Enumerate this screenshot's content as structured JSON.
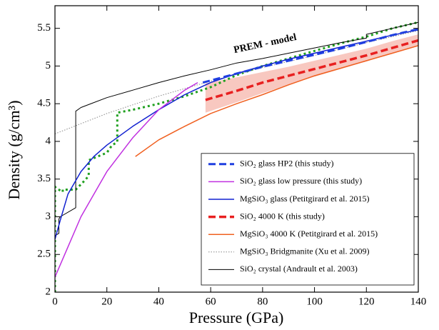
{
  "chart_data": {
    "type": "line",
    "x_label": "Pressure (GPa)",
    "y_label": "Density (g/cm³)",
    "xlim": [
      0,
      140
    ],
    "ylim": [
      2,
      5.8
    ],
    "xticks": [
      0,
      20,
      40,
      60,
      80,
      100,
      120,
      140
    ],
    "yticks": [
      2,
      2.5,
      3,
      3.5,
      4,
      4.5,
      5,
      5.5
    ],
    "legend": "lower right",
    "series": [
      {
        "name": "SiO₂ glass HP2 (this study)",
        "color": "#1f3fe0",
        "style": "dashed",
        "width": 3,
        "x": [
          57,
          70,
          80,
          90,
          100,
          110,
          120,
          130,
          140
        ],
        "values": [
          4.78,
          4.9,
          4.99,
          5.07,
          5.15,
          5.23,
          5.32,
          5.41,
          5.49
        ]
      },
      {
        "name": "SiO₂ glass low pressure (this study)",
        "color": "#c030e0",
        "style": "solid",
        "width": 1.5,
        "x": [
          0,
          5,
          10,
          20,
          30,
          40,
          50,
          55
        ],
        "values": [
          2.2,
          2.6,
          3.0,
          3.6,
          4.05,
          4.42,
          4.68,
          4.78
        ]
      },
      {
        "name": "MgSiO₃ glass (Petitgirard et al. 2015)",
        "color": "#1020d0",
        "style": "solid",
        "width": 1.5,
        "x": [
          0,
          2,
          5,
          10,
          15,
          20,
          30,
          40,
          50,
          60,
          70,
          80,
          90,
          100,
          110,
          120,
          130,
          140
        ],
        "values": [
          2.7,
          2.95,
          3.3,
          3.6,
          3.8,
          3.95,
          4.2,
          4.42,
          4.62,
          4.78,
          4.9,
          5.0,
          5.09,
          5.17,
          5.25,
          5.33,
          5.41,
          5.48
        ]
      },
      {
        "name": "SiO₂ 4000 K (this study)",
        "color": "#e82020",
        "style": "dashed",
        "width": 3.5,
        "x": [
          58,
          70,
          80,
          90,
          100,
          110,
          120,
          130,
          140
        ],
        "values": [
          4.55,
          4.67,
          4.78,
          4.87,
          4.96,
          5.05,
          5.14,
          5.24,
          5.34
        ],
        "band_color": "#f8c8c0",
        "lower": [
          4.38,
          4.52,
          4.64,
          4.75,
          4.86,
          4.96,
          5.06,
          5.17,
          5.27
        ],
        "upper": [
          4.77,
          4.85,
          4.92,
          4.99,
          5.07,
          5.15,
          5.23,
          5.33,
          5.42
        ]
      },
      {
        "name": "MgSiO₃ 4000 K (Petitgirard et al. 2015)",
        "color": "#f06020",
        "style": "solid",
        "width": 1.5,
        "x": [
          31,
          40,
          50,
          60,
          70,
          80,
          90,
          100,
          110,
          120,
          130,
          140
        ],
        "values": [
          3.8,
          4.02,
          4.2,
          4.37,
          4.5,
          4.62,
          4.75,
          4.87,
          4.97,
          5.07,
          5.17,
          5.27
        ]
      },
      {
        "name": "MgSiO₃ Bridgmanite (Xu et al. 2009)",
        "color": "#888888",
        "style": "dotted",
        "width": 1,
        "x": [
          0,
          20,
          40,
          60,
          80,
          100,
          120,
          140
        ],
        "values": [
          4.1,
          4.37,
          4.6,
          4.8,
          4.98,
          5.14,
          5.31,
          5.47
        ]
      },
      {
        "name": "SiO₂ crystal (Andrault et al. 2003)",
        "color": "#000000",
        "style": "solid",
        "width": 1,
        "x": [
          0,
          1.5,
          1.5,
          2,
          8,
          8,
          10,
          20,
          30,
          40,
          50,
          60,
          70,
          80,
          90,
          100,
          110,
          120,
          120,
          130,
          140
        ],
        "values": [
          2.75,
          2.78,
          2.97,
          3.0,
          3.12,
          4.4,
          4.45,
          4.58,
          4.68,
          4.78,
          4.87,
          4.95,
          5.04,
          5.1,
          5.17,
          5.24,
          5.31,
          5.37,
          5.42,
          5.5,
          5.58
        ]
      }
    ],
    "reference": {
      "name": "PREM - model",
      "color": "#20a020",
      "style": "dotted",
      "width": 3,
      "x": [
        0,
        0,
        0.5,
        3,
        3,
        8,
        12,
        13,
        13,
        20,
        22,
        24,
        24,
        30,
        40,
        50,
        60,
        70,
        80,
        90,
        100,
        110,
        120,
        130,
        140
      ],
      "values": [
        2.0,
        3.4,
        3.38,
        3.33,
        3.36,
        3.36,
        3.5,
        3.55,
        3.75,
        3.85,
        3.95,
        3.99,
        4.38,
        4.42,
        4.5,
        4.6,
        4.72,
        4.88,
        5.0,
        5.1,
        5.2,
        5.3,
        5.39,
        5.5,
        5.58
      ]
    }
  }
}
